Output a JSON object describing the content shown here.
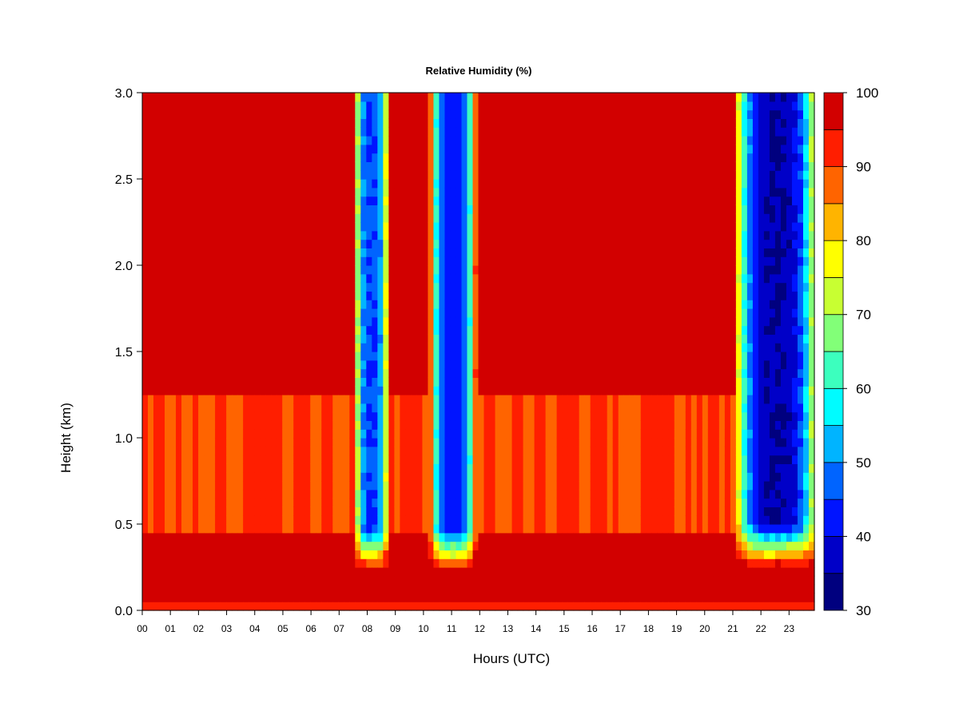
{
  "chart_data": {
    "type": "heatmap",
    "title": "Relative Humidity (%)",
    "xlabel": "Hours (UTC)",
    "ylabel": "Height (km)",
    "x_ticks": [
      "00",
      "01",
      "02",
      "03",
      "04",
      "05",
      "06",
      "07",
      "08",
      "09",
      "10",
      "11",
      "12",
      "13",
      "14",
      "15",
      "16",
      "17",
      "18",
      "19",
      "20",
      "21",
      "22",
      "23"
    ],
    "xlim": [
      0,
      23.9
    ],
    "ylim": [
      0.0,
      3.0
    ],
    "y_ticks": [
      "0.0",
      "0.5",
      "1.0",
      "1.5",
      "2.0",
      "2.5",
      "3.0"
    ],
    "colorbar": {
      "levels": [
        30,
        35,
        40,
        45,
        50,
        55,
        60,
        65,
        70,
        75,
        80,
        85,
        90,
        95,
        100
      ],
      "labels": [
        "30",
        "40",
        "50",
        "60",
        "70",
        "80",
        "90",
        "100"
      ],
      "colors": [
        "#00007f",
        "#0000c8",
        "#0014ff",
        "#0064ff",
        "#00b4ff",
        "#00fcff",
        "#3cffbe",
        "#82ff78",
        "#c8ff32",
        "#ffff00",
        "#ffb400",
        "#ff6400",
        "#ff1e00",
        "#d20000",
        "#7f0000"
      ]
    },
    "dry_intervals": [
      {
        "start": 7.6,
        "end": 8.7,
        "min_rh": 45,
        "lower_height_km": 0.22
      },
      {
        "start": 10.3,
        "end": 11.8,
        "min_rh": 42,
        "lower_height_km": 0.22
      },
      {
        "start": 21.2,
        "end": 23.9,
        "min_rh": 35,
        "lower_height_km": 0.25
      }
    ],
    "background": {
      "saturated_rh": 98,
      "moist_layer_rh": 90,
      "moist_layer_bottom_km": 0.47,
      "moist_layer_top_km": 1.25,
      "surface_layer_rh": 92
    }
  }
}
